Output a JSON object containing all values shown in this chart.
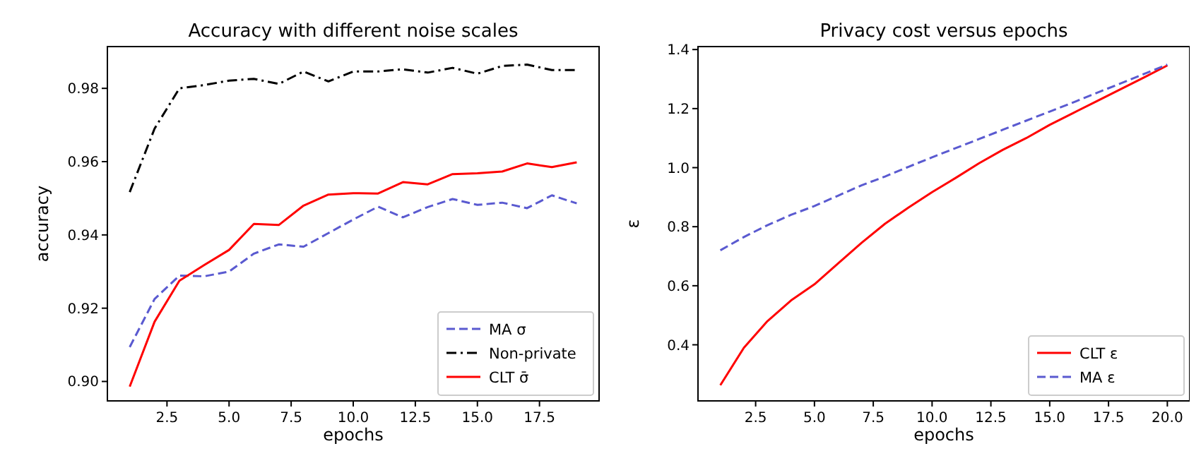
{
  "chart_data": [
    {
      "type": "line",
      "title": "Accuracy with different noise scales",
      "xlabel": "epochs",
      "ylabel": "accuracy",
      "x": [
        1,
        2,
        3,
        4,
        5,
        6,
        7,
        8,
        9,
        10,
        11,
        12,
        13,
        14,
        15,
        16,
        17,
        18,
        19
      ],
      "xlim": [
        0.1,
        19.9
      ],
      "ylim": [
        0.8947,
        0.9914
      ],
      "xticks": [
        2.5,
        {
          "value": 5,
          "label": "5.0"
        },
        7.5,
        {
          "value": 10,
          "label": "10.0"
        },
        12.5,
        {
          "value": 15,
          "label": "15.0"
        },
        17.5
      ],
      "yticks": [
        {
          "value": 0.9,
          "label": "0.90"
        },
        0.92,
        0.94,
        0.96,
        0.98
      ],
      "legend": "bottom right",
      "grid": false,
      "marker": "none",
      "series": [
        {
          "name": "MA σ",
          "color": "#5a5ad0",
          "line_style": "dashed",
          "values": [
            0.9094,
            0.9225,
            0.9289,
            0.9287,
            0.93,
            0.9349,
            0.9374,
            0.9368,
            0.9405,
            0.9442,
            0.9477,
            0.9448,
            0.9476,
            0.9498,
            0.9482,
            0.9488,
            0.9473,
            0.9508,
            0.9486
          ]
        },
        {
          "name": "Non-private",
          "color": "#000000",
          "line_style": "dashdot",
          "values": [
            0.9517,
            0.969,
            0.98,
            0.9809,
            0.9821,
            0.9826,
            0.9812,
            0.9846,
            0.9819,
            0.9846,
            0.9846,
            0.9852,
            0.9843,
            0.9856,
            0.984,
            0.9861,
            0.9865,
            0.985,
            0.985
          ]
        },
        {
          "name": "CLT σ̄",
          "color": "#ff0000",
          "line_style": "solid",
          "values": [
            0.8986,
            0.9163,
            0.9275,
            0.9318,
            0.9359,
            0.943,
            0.9427,
            0.948,
            0.951,
            0.9514,
            0.9513,
            0.9544,
            0.9538,
            0.9566,
            0.9568,
            0.9573,
            0.9595,
            0.9585,
            0.9598
          ]
        }
      ]
    },
    {
      "type": "line",
      "title": "Privacy cost versus epochs",
      "xlabel": "epochs",
      "ylabel": "ε",
      "x": [
        1,
        2,
        3,
        4,
        5,
        6,
        7,
        8,
        9,
        10,
        11,
        12,
        13,
        14,
        15,
        16,
        17,
        18,
        19,
        20
      ],
      "xlim": [
        0.05,
        20.95
      ],
      "ylim": [
        0.21,
        1.41
      ],
      "xticks": [
        2.5,
        {
          "value": 5,
          "label": "5.0"
        },
        7.5,
        {
          "value": 10,
          "label": "10.0"
        },
        12.5,
        {
          "value": 15,
          "label": "15.0"
        },
        17.5,
        {
          "value": 20,
          "label": "20.0"
        }
      ],
      "yticks": [
        0.4,
        0.6,
        0.8,
        {
          "value": 1,
          "label": "1.0"
        },
        1.2,
        1.4
      ],
      "legend": "bottom right",
      "grid": false,
      "marker": "none",
      "series": [
        {
          "name": "CLT ε",
          "color": "#ff0000",
          "line_style": "solid",
          "values": [
            0.263,
            0.39,
            0.48,
            0.55,
            0.605,
            0.675,
            0.745,
            0.81,
            0.865,
            0.917,
            0.965,
            1.015,
            1.06,
            1.1,
            1.145,
            1.185,
            1.225,
            1.265,
            1.305,
            1.346
          ]
        },
        {
          "name": "MA ε",
          "color": "#5a5ad0",
          "line_style": "dashed",
          "values": [
            0.72,
            0.765,
            0.805,
            0.84,
            0.87,
            0.905,
            0.94,
            0.97,
            1.003,
            1.035,
            1.066,
            1.097,
            1.128,
            1.159,
            1.19,
            1.221,
            1.253,
            1.285,
            1.317,
            1.349
          ]
        }
      ]
    }
  ]
}
